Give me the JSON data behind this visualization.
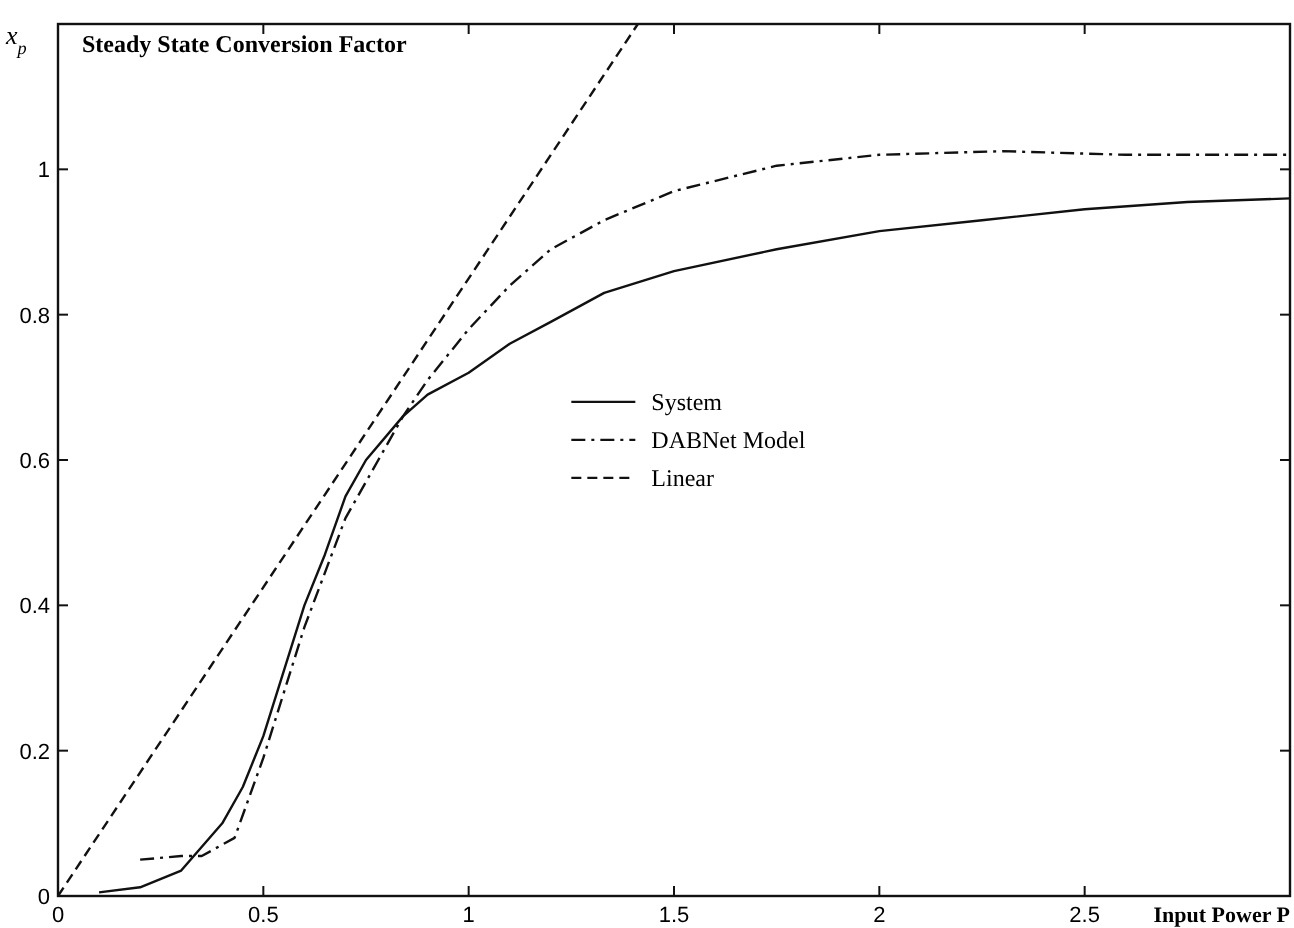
{
  "chart_data": {
    "type": "line",
    "title": "Steady State Conversion Factor",
    "xlabel": "Input Power P",
    "ylabel": "x$_{p}$",
    "xlim": [
      0,
      3
    ],
    "ylim": [
      0,
      1.2
    ],
    "xticks": [
      0,
      0.5,
      1,
      1.5,
      2,
      2.5
    ],
    "yticks": [
      0,
      0.2,
      0.4,
      0.6,
      0.8,
      1
    ],
    "grid": false,
    "legend": "center",
    "series": [
      {
        "name": "System",
        "color": "#111111",
        "line_style": "solid",
        "x": [
          0.1,
          0.2,
          0.3,
          0.4,
          0.45,
          0.5,
          0.6,
          0.65,
          0.7,
          0.75,
          0.84,
          0.9,
          1,
          1.1,
          1.2,
          1.33,
          1.5,
          1.75,
          2,
          2.25,
          2.5,
          2.75,
          3
        ],
        "values": [
          0.005,
          0.012,
          0.035,
          0.1,
          0.15,
          0.22,
          0.4,
          0.47,
          0.55,
          0.6,
          0.66,
          0.69,
          0.72,
          0.76,
          0.79,
          0.83,
          0.86,
          0.89,
          0.915,
          0.93,
          0.945,
          0.955,
          0.96
        ]
      },
      {
        "name": "DABNet Model",
        "color": "#111111",
        "line_style": "dashdot",
        "x": [
          0.2,
          0.3,
          0.35,
          0.43,
          0.5,
          0.6,
          0.7,
          0.78,
          0.84,
          0.9,
          1,
          1.1,
          1.2,
          1.33,
          1.5,
          1.75,
          2,
          2.3,
          2.6,
          3
        ],
        "values": [
          0.05,
          0.055,
          0.055,
          0.08,
          0.19,
          0.37,
          0.52,
          0.6,
          0.66,
          0.71,
          0.78,
          0.84,
          0.89,
          0.93,
          0.97,
          1.005,
          1.02,
          1.025,
          1.02,
          1.02
        ]
      },
      {
        "name": "Linear",
        "color": "#111111",
        "line_style": "dashed",
        "x": [
          0,
          1.412
        ],
        "values": [
          0,
          1.2
        ]
      }
    ]
  }
}
